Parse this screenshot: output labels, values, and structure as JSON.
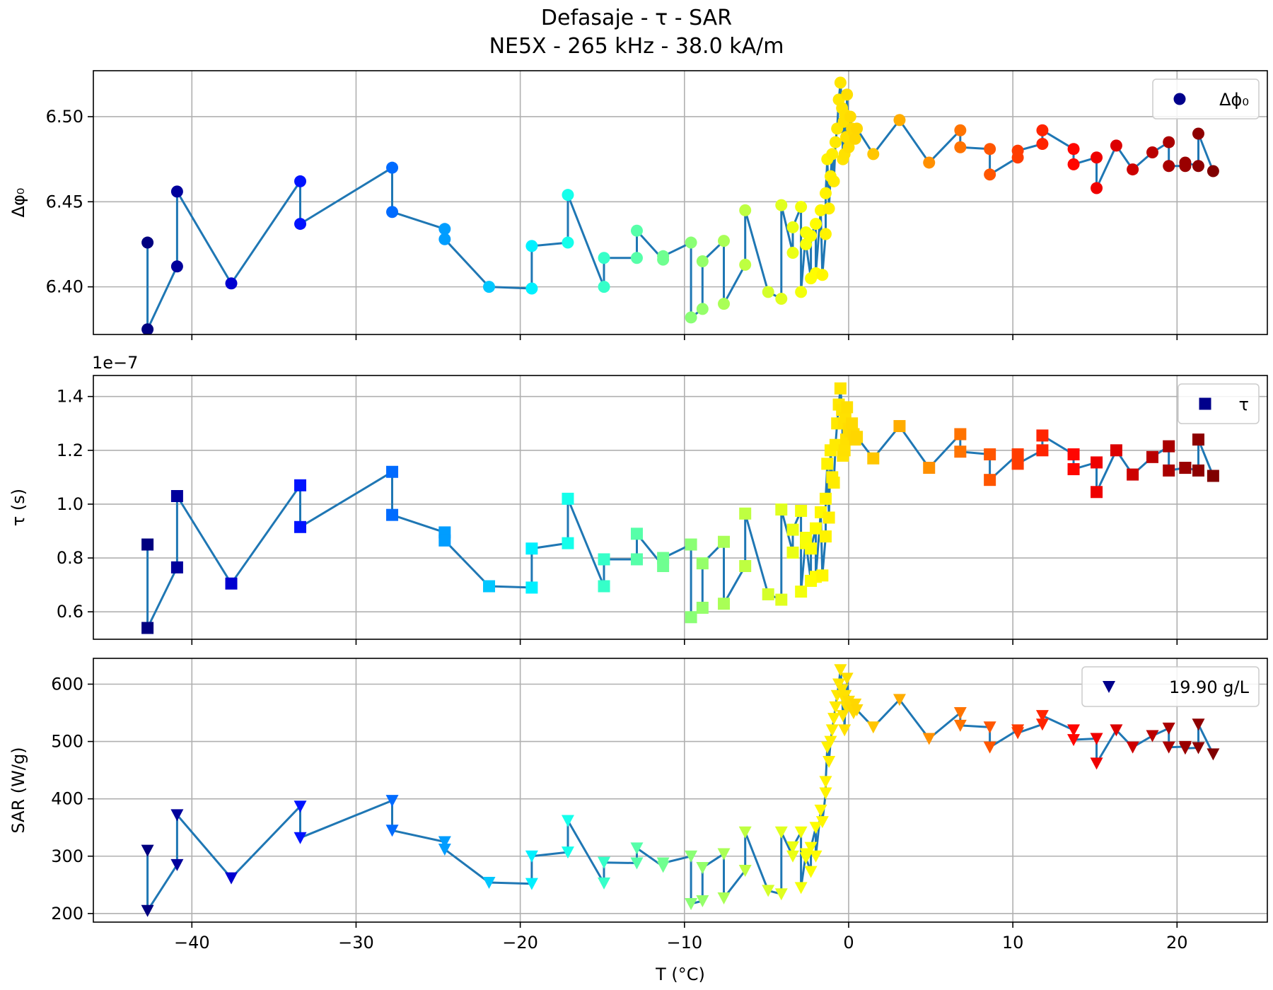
{
  "figure": {
    "title_line1": "Defasaje - τ - SAR",
    "title_line2": "NE5X - 265 kHz - 38.0 kA/m",
    "xlabel": "T (°C)"
  },
  "chart_data": [
    {
      "type": "line",
      "marker": "circle",
      "ylabel": "Δφ₀",
      "legend": "Δϕ₀",
      "legend_position": "top-right",
      "grid": true,
      "xlim": [
        -46,
        25.5
      ],
      "ylim": [
        6.372,
        6.527
      ],
      "xticks": [
        -40,
        -30,
        -20,
        -10,
        0,
        10,
        20
      ],
      "xtick_labels": [
        "",
        "",
        "",
        "",
        "",
        "",
        ""
      ],
      "yticks": [
        6.4,
        6.45,
        6.5
      ],
      "ytick_labels": [
        "6.40",
        "6.45",
        "6.50"
      ],
      "x": [
        -42.7,
        -42.7,
        -40.9,
        -40.9,
        -37.6,
        -33.4,
        -33.4,
        -27.8,
        -27.8,
        -24.6,
        -24.6,
        -21.9,
        -19.3,
        -19.3,
        -17.1,
        -17.1,
        -14.9,
        -14.9,
        -12.9,
        -12.9,
        -11.3,
        -11.3,
        -9.6,
        -9.6,
        -8.9,
        -8.9,
        -7.6,
        -7.6,
        -6.3,
        -6.3,
        -4.9,
        -4.1,
        -4.1,
        -3.4,
        -3.4,
        -2.9,
        -2.9,
        -2.6,
        -2.6,
        -2.3,
        -2.3,
        -2.0,
        -2.0,
        -1.7,
        -1.6,
        -1.4,
        -1.4,
        -1.3,
        -1.2,
        -1.1,
        -1.0,
        -0.9,
        -0.8,
        -0.7,
        -0.6,
        -0.5,
        -0.4,
        -0.35,
        -0.3,
        -0.25,
        -0.2,
        -0.15,
        -0.1,
        0.0,
        0.1,
        0.2,
        0.3,
        0.4,
        0.5,
        1.5,
        3.1,
        4.9,
        6.8,
        6.8,
        8.6,
        8.6,
        10.3,
        10.3,
        11.8,
        11.8,
        13.7,
        13.7,
        15.1,
        15.1,
        16.3,
        17.3,
        18.5,
        19.5,
        19.5,
        20.5,
        20.5,
        21.3,
        21.3,
        22.2
      ],
      "values": [
        6.426,
        6.375,
        6.412,
        6.456,
        6.402,
        6.462,
        6.437,
        6.47,
        6.444,
        6.434,
        6.428,
        6.4,
        6.399,
        6.424,
        6.426,
        6.454,
        6.4,
        6.417,
        6.417,
        6.433,
        6.416,
        6.418,
        6.426,
        6.382,
        6.387,
        6.415,
        6.427,
        6.39,
        6.413,
        6.445,
        6.397,
        6.393,
        6.448,
        6.42,
        6.435,
        6.447,
        6.397,
        6.432,
        6.425,
        6.405,
        6.43,
        6.437,
        6.408,
        6.445,
        6.407,
        6.431,
        6.455,
        6.475,
        6.446,
        6.465,
        6.478,
        6.462,
        6.485,
        6.493,
        6.51,
        6.52,
        6.505,
        6.475,
        6.497,
        6.478,
        6.501,
        6.488,
        6.513,
        6.482,
        6.5,
        6.493,
        6.491,
        6.487,
        6.493,
        6.478,
        6.498,
        6.473,
        6.492,
        6.482,
        6.481,
        6.466,
        6.476,
        6.48,
        6.484,
        6.492,
        6.481,
        6.472,
        6.476,
        6.458,
        6.483,
        6.469,
        6.479,
        6.485,
        6.471,
        6.471,
        6.473,
        6.471,
        6.49,
        6.468
      ]
    },
    {
      "type": "line",
      "marker": "square",
      "ylabel": "τ (s)",
      "offset_text": "1e−7",
      "legend": "τ",
      "legend_position": "top-right",
      "grid": true,
      "xlim": [
        -46,
        25.5
      ],
      "ylim": [
        0.498,
        1.478
      ],
      "xticks": [
        -40,
        -30,
        -20,
        -10,
        0,
        10,
        20
      ],
      "xtick_labels": [
        "",
        "",
        "",
        "",
        "",
        "",
        ""
      ],
      "yticks": [
        0.6,
        0.8,
        1.0,
        1.2,
        1.4
      ],
      "ytick_labels": [
        "0.6",
        "0.8",
        "1.0",
        "1.2",
        "1.4"
      ],
      "x": [
        -42.7,
        -42.7,
        -40.9,
        -40.9,
        -37.6,
        -33.4,
        -33.4,
        -27.8,
        -27.8,
        -24.6,
        -24.6,
        -21.9,
        -19.3,
        -19.3,
        -17.1,
        -17.1,
        -14.9,
        -14.9,
        -12.9,
        -12.9,
        -11.3,
        -11.3,
        -9.6,
        -9.6,
        -8.9,
        -8.9,
        -7.6,
        -7.6,
        -6.3,
        -6.3,
        -4.9,
        -4.1,
        -4.1,
        -3.4,
        -3.4,
        -2.9,
        -2.9,
        -2.6,
        -2.6,
        -2.3,
        -2.3,
        -2.0,
        -2.0,
        -1.7,
        -1.6,
        -1.4,
        -1.4,
        -1.3,
        -1.2,
        -1.1,
        -1.0,
        -0.9,
        -0.8,
        -0.7,
        -0.6,
        -0.5,
        -0.4,
        -0.35,
        -0.3,
        -0.25,
        -0.2,
        -0.15,
        -0.1,
        0.0,
        0.1,
        0.2,
        0.3,
        0.4,
        0.5,
        1.5,
        3.1,
        4.9,
        6.8,
        6.8,
        8.6,
        8.6,
        10.3,
        10.3,
        11.8,
        11.8,
        13.7,
        13.7,
        15.1,
        15.1,
        16.3,
        17.3,
        18.5,
        19.5,
        19.5,
        20.5,
        20.5,
        21.3,
        21.3,
        22.2
      ],
      "values": [
        0.85,
        0.54,
        0.765,
        1.03,
        0.705,
        1.07,
        0.915,
        1.12,
        0.96,
        0.895,
        0.865,
        0.695,
        0.69,
        0.835,
        0.855,
        1.02,
        0.695,
        0.795,
        0.795,
        0.89,
        0.77,
        0.8,
        0.85,
        0.58,
        0.615,
        0.78,
        0.86,
        0.63,
        0.77,
        0.965,
        0.665,
        0.645,
        0.98,
        0.82,
        0.905,
        0.975,
        0.675,
        0.875,
        0.855,
        0.715,
        0.835,
        0.91,
        0.73,
        0.97,
        0.735,
        0.88,
        1.02,
        1.15,
        0.95,
        1.2,
        1.1,
        1.08,
        1.22,
        1.3,
        1.37,
        1.43,
        1.35,
        1.18,
        1.3,
        1.2,
        1.32,
        1.24,
        1.36,
        1.28,
        1.27,
        1.3,
        1.26,
        1.24,
        1.25,
        1.17,
        1.29,
        1.135,
        1.26,
        1.195,
        1.185,
        1.09,
        1.185,
        1.15,
        1.2,
        1.255,
        1.185,
        1.13,
        1.155,
        1.045,
        1.2,
        1.11,
        1.175,
        1.215,
        1.125,
        1.135,
        1.135,
        1.125,
        1.24,
        1.105
      ]
    },
    {
      "type": "line",
      "marker": "triangle-down",
      "ylabel": "SAR (W/g)",
      "legend": "19.90 g/L",
      "legend_position": "top-right",
      "grid": true,
      "xlim": [
        -46,
        25.5
      ],
      "ylim": [
        185,
        645
      ],
      "xticks": [
        -40,
        -30,
        -20,
        -10,
        0,
        10,
        20
      ],
      "xtick_labels": [
        "−40",
        "−30",
        "−20",
        "−10",
        "0",
        "10",
        "20"
      ],
      "yticks": [
        200,
        300,
        400,
        500,
        600
      ],
      "ytick_labels": [
        "200",
        "300",
        "400",
        "500",
        "600"
      ],
      "x": [
        -42.7,
        -42.7,
        -40.9,
        -40.9,
        -37.6,
        -33.4,
        -33.4,
        -27.8,
        -27.8,
        -24.6,
        -24.6,
        -21.9,
        -19.3,
        -19.3,
        -17.1,
        -17.1,
        -14.9,
        -14.9,
        -12.9,
        -12.9,
        -11.3,
        -11.3,
        -9.6,
        -9.6,
        -8.9,
        -8.9,
        -7.6,
        -7.6,
        -6.3,
        -6.3,
        -4.9,
        -4.1,
        -4.1,
        -3.4,
        -3.4,
        -2.9,
        -2.9,
        -2.6,
        -2.6,
        -2.3,
        -2.3,
        -2.0,
        -2.0,
        -1.7,
        -1.6,
        -1.4,
        -1.4,
        -1.3,
        -1.2,
        -1.1,
        -1.0,
        -0.9,
        -0.8,
        -0.7,
        -0.6,
        -0.5,
        -0.4,
        -0.35,
        -0.3,
        -0.25,
        -0.2,
        -0.15,
        -0.1,
        0.0,
        0.1,
        0.2,
        0.3,
        0.4,
        0.5,
        1.5,
        3.1,
        4.9,
        6.8,
        6.8,
        8.6,
        8.6,
        10.3,
        10.3,
        11.8,
        11.8,
        13.7,
        13.7,
        15.1,
        15.1,
        16.3,
        17.3,
        18.5,
        19.5,
        19.5,
        20.5,
        20.5,
        21.3,
        21.3,
        22.2
      ],
      "values": [
        310,
        205,
        285,
        372,
        262,
        387,
        332,
        397,
        345,
        325,
        312,
        254,
        252,
        300,
        307,
        362,
        253,
        289,
        288,
        314,
        282,
        288,
        300,
        217,
        222,
        280,
        304,
        227,
        275,
        342,
        240,
        234,
        342,
        300,
        316,
        342,
        245,
        304,
        297,
        273,
        315,
        350,
        300,
        380,
        360,
        410,
        430,
        490,
        465,
        500,
        520,
        540,
        560,
        580,
        600,
        625,
        590,
        545,
        575,
        520,
        580,
        560,
        610,
        570,
        560,
        555,
        550,
        565,
        555,
        525,
        573,
        505,
        550,
        528,
        525,
        490,
        520,
        515,
        530,
        545,
        520,
        503,
        505,
        462,
        520,
        490,
        510,
        523,
        490,
        491,
        488,
        489,
        530,
        478
      ]
    }
  ]
}
